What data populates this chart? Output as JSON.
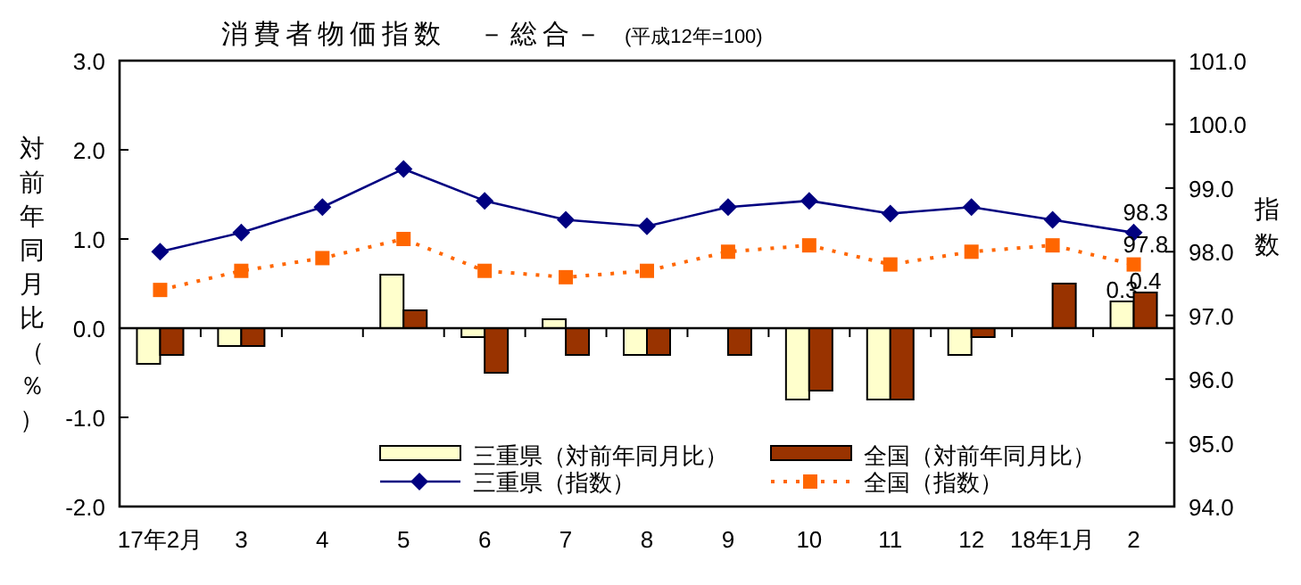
{
  "chart_data": {
    "type": "bar",
    "title": "消費者物価指数　－総合－",
    "subtitle": "(平成12年=100)",
    "ylabel": "対前年同月比（％）",
    "y2label": "指数",
    "categories": [
      "17年2月",
      "3",
      "4",
      "5",
      "6",
      "7",
      "8",
      "9",
      "10",
      "11",
      "12",
      "18年1月",
      "2"
    ],
    "series": [
      {
        "name": "三重県（対前年同月比）",
        "color": "#ffffcc",
        "values": [
          -0.4,
          -0.2,
          0.0,
          0.6,
          -0.1,
          0.1,
          -0.3,
          0.0,
          -0.8,
          -0.8,
          -0.3,
          0.0,
          0.3
        ],
        "value_labels": [
          null,
          null,
          null,
          null,
          null,
          null,
          null,
          null,
          null,
          null,
          null,
          null,
          "0.3"
        ]
      },
      {
        "name": "全国（対前年同月比）",
        "color": "#993300",
        "values": [
          -0.3,
          -0.2,
          0.0,
          0.2,
          -0.5,
          -0.3,
          -0.3,
          -0.3,
          -0.7,
          -0.8,
          -0.1,
          0.5,
          0.4
        ],
        "value_labels": [
          null,
          null,
          null,
          null,
          null,
          null,
          null,
          null,
          null,
          null,
          null,
          null,
          "0.4"
        ]
      },
      {
        "name": "三重県（指数）",
        "type": "line",
        "axis": "y2",
        "color": "#000080",
        "marker": "diamond",
        "line_style": "solid",
        "values": [
          98.0,
          98.3,
          98.7,
          99.3,
          98.8,
          98.5,
          98.4,
          98.7,
          98.8,
          98.6,
          98.7,
          98.5,
          98.3
        ],
        "value_labels": [
          null,
          null,
          null,
          null,
          null,
          null,
          null,
          null,
          null,
          null,
          null,
          null,
          "98.3"
        ]
      },
      {
        "name": "全国（指数）",
        "type": "line",
        "axis": "y2",
        "color": "#ff6600",
        "marker": "square",
        "line_style": "dotted",
        "values": [
          97.4,
          97.7,
          97.9,
          98.2,
          97.7,
          97.6,
          97.7,
          98.0,
          98.1,
          97.8,
          98.0,
          98.1,
          97.8
        ],
        "value_labels": [
          null,
          null,
          null,
          null,
          null,
          null,
          null,
          null,
          null,
          null,
          null,
          null,
          "97.8"
        ]
      }
    ],
    "ylim": [
      -2,
      3
    ],
    "yticks": [
      {
        "value": -2,
        "label": "-2.0"
      },
      {
        "value": -1,
        "label": "-1.0"
      },
      {
        "value": 0,
        "label": "0.0"
      },
      {
        "value": 1,
        "label": "1.0"
      },
      {
        "value": 2,
        "label": "2.0"
      },
      {
        "value": 3,
        "label": "3.0"
      }
    ],
    "y2lim": [
      94,
      101
    ],
    "y2ticks": [
      {
        "value": 94,
        "label": "94.0"
      },
      {
        "value": 95,
        "label": "95.0"
      },
      {
        "value": 96,
        "label": "96.0"
      },
      {
        "value": 97,
        "label": "97.0"
      },
      {
        "value": 98,
        "label": "98.0"
      },
      {
        "value": 99,
        "label": "99.0"
      },
      {
        "value": 100,
        "label": "100.0"
      },
      {
        "value": 101,
        "label": "101.0"
      }
    ],
    "legend": "bottom right"
  }
}
